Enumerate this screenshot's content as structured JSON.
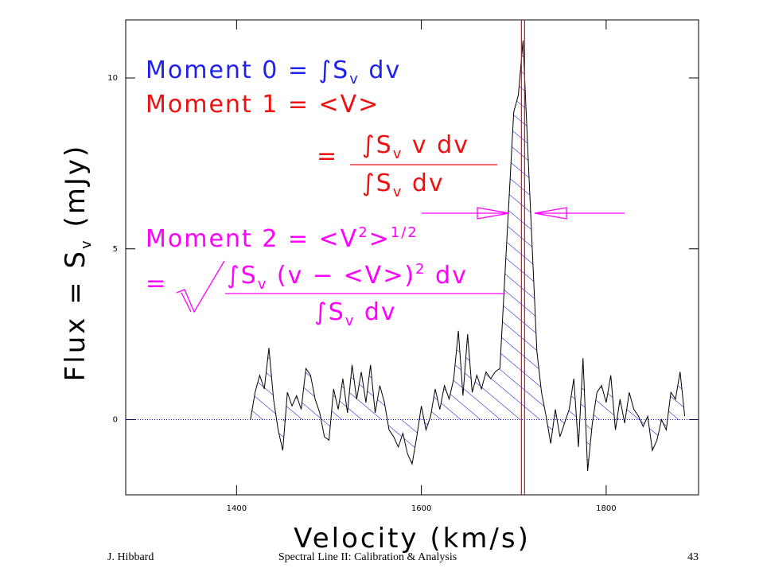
{
  "chart_data": {
    "type": "line",
    "xlabel": "Velocity (km/s)",
    "ylabel": [
      "Flux = S",
      "v",
      " (mJy)"
    ],
    "xlim": [
      1280,
      1900
    ],
    "ylim": [
      -2.2,
      11.7
    ],
    "xticks": [
      1400,
      1600,
      1800
    ],
    "yticks": [
      0,
      5,
      10
    ],
    "series": [
      {
        "color": "#000000",
        "fill_color": "#0000cc",
        "x": [
          1415,
          1420,
          1425,
          1430,
          1435,
          1440,
          1445,
          1450,
          1455,
          1460,
          1465,
          1470,
          1475,
          1480,
          1485,
          1490,
          1495,
          1500,
          1505,
          1510,
          1515,
          1520,
          1525,
          1530,
          1535,
          1540,
          1545,
          1550,
          1555,
          1560,
          1565,
          1570,
          1575,
          1580,
          1585,
          1590,
          1595,
          1600,
          1605,
          1610,
          1615,
          1620,
          1625,
          1630,
          1635,
          1640,
          1645,
          1650,
          1655,
          1660,
          1665,
          1670,
          1675,
          1680,
          1685,
          1690,
          1695,
          1700,
          1705,
          1710,
          1715,
          1720,
          1725,
          1730,
          1735,
          1740,
          1745,
          1750,
          1755,
          1760,
          1765,
          1770,
          1775,
          1780,
          1785,
          1790,
          1795,
          1800,
          1805,
          1810,
          1815,
          1820,
          1825,
          1830,
          1835,
          1840,
          1845,
          1850,
          1855,
          1860,
          1865,
          1870,
          1875,
          1880,
          1885
        ],
        "values": [
          0.0,
          0.8,
          1.3,
          0.9,
          2.1,
          0.6,
          -0.3,
          -0.9,
          0.8,
          0.4,
          0.7,
          0.3,
          1.5,
          1.3,
          0.6,
          0.2,
          -0.5,
          -0.6,
          0.9,
          0.3,
          1.2,
          0.2,
          1.6,
          0.6,
          1.4,
          0.5,
          1.6,
          0.2,
          1.0,
          0.5,
          -0.3,
          -0.5,
          -0.8,
          -0.4,
          -1.0,
          -1.3,
          -0.5,
          0.4,
          -0.3,
          0.1,
          0.9,
          0.3,
          1.0,
          0.6,
          1.2,
          2.6,
          0.7,
          2.5,
          0.8,
          1.3,
          0.9,
          1.4,
          1.2,
          1.4,
          1.5,
          4.0,
          6.5,
          9.0,
          9.5,
          11.1,
          8.0,
          5.0,
          2.0,
          0.8,
          0.1,
          -0.7,
          0.3,
          -0.5,
          -0.1,
          0.3,
          1.2,
          -0.8,
          1.8,
          -1.5,
          -0.1,
          0.8,
          1.0,
          0.5,
          1.3,
          -0.3,
          0.6,
          -0.1,
          0.8,
          0.3,
          0.1,
          -0.2,
          0.1,
          -0.9,
          -0.6,
          0.0,
          -0.3,
          0.8,
          0.6,
          1.4,
          0.1
        ]
      }
    ],
    "mean_line": {
      "value": 1710,
      "color": "#ff0000"
    },
    "annotations": {
      "moment0": [
        "Moment 0 = ∫S",
        "v",
        " dv"
      ],
      "moment1": "Moment 1 = <V>",
      "moment1_eq": "=",
      "moment1_num": [
        "∫S",
        "v",
        " v dv"
      ],
      "moment1_den": [
        "∫S",
        "v",
        " dv"
      ],
      "moment2": [
        "Moment 2 = <V",
        "2",
        ">",
        "1/2"
      ],
      "moment2_eq": "=",
      "moment2_num": [
        "∫S",
        "v",
        " (v − <V>)",
        "2",
        " dv"
      ],
      "moment2_den": [
        "∫S",
        "v",
        " dv"
      ]
    }
  },
  "footer": {
    "author": "J. Hibbard",
    "title": "Spectral Line II: Calibration & Analysis",
    "page": "43"
  }
}
